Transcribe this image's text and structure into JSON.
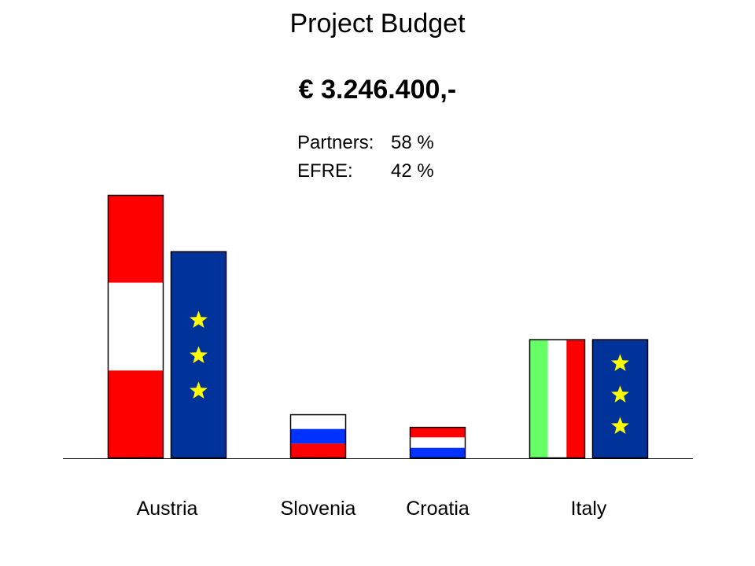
{
  "title": "Project Budget",
  "total": "€ 3.246.400,-",
  "shares": [
    {
      "label": "Partners:",
      "value": "58 %"
    },
    {
      "label": "EFRE:",
      "value": "42 %"
    }
  ],
  "chart_data": {
    "type": "bar",
    "categories": [
      "Austria",
      "Slovenia",
      "Croatia",
      "Italy"
    ],
    "series": [
      {
        "values": [
          100,
          16.7,
          11.9,
          45.2
        ]
      },
      {
        "values": [
          78.6,
          null,
          null,
          45.2
        ]
      }
    ],
    "ylim": [
      0,
      100
    ],
    "grid": false,
    "legend": "none"
  },
  "colors": {
    "red": "#ff0000",
    "white": "#ffffff",
    "blue": "#0033ff",
    "green": "#66ff66",
    "eu_blue": "#003399",
    "star": "#ffff00"
  },
  "bar_fills": [
    [
      "austria-flag",
      "eu-flag"
    ],
    [
      "slovenia-flag"
    ],
    [
      "croatia-flag"
    ],
    [
      "italy-flag",
      "eu-flag"
    ]
  ]
}
